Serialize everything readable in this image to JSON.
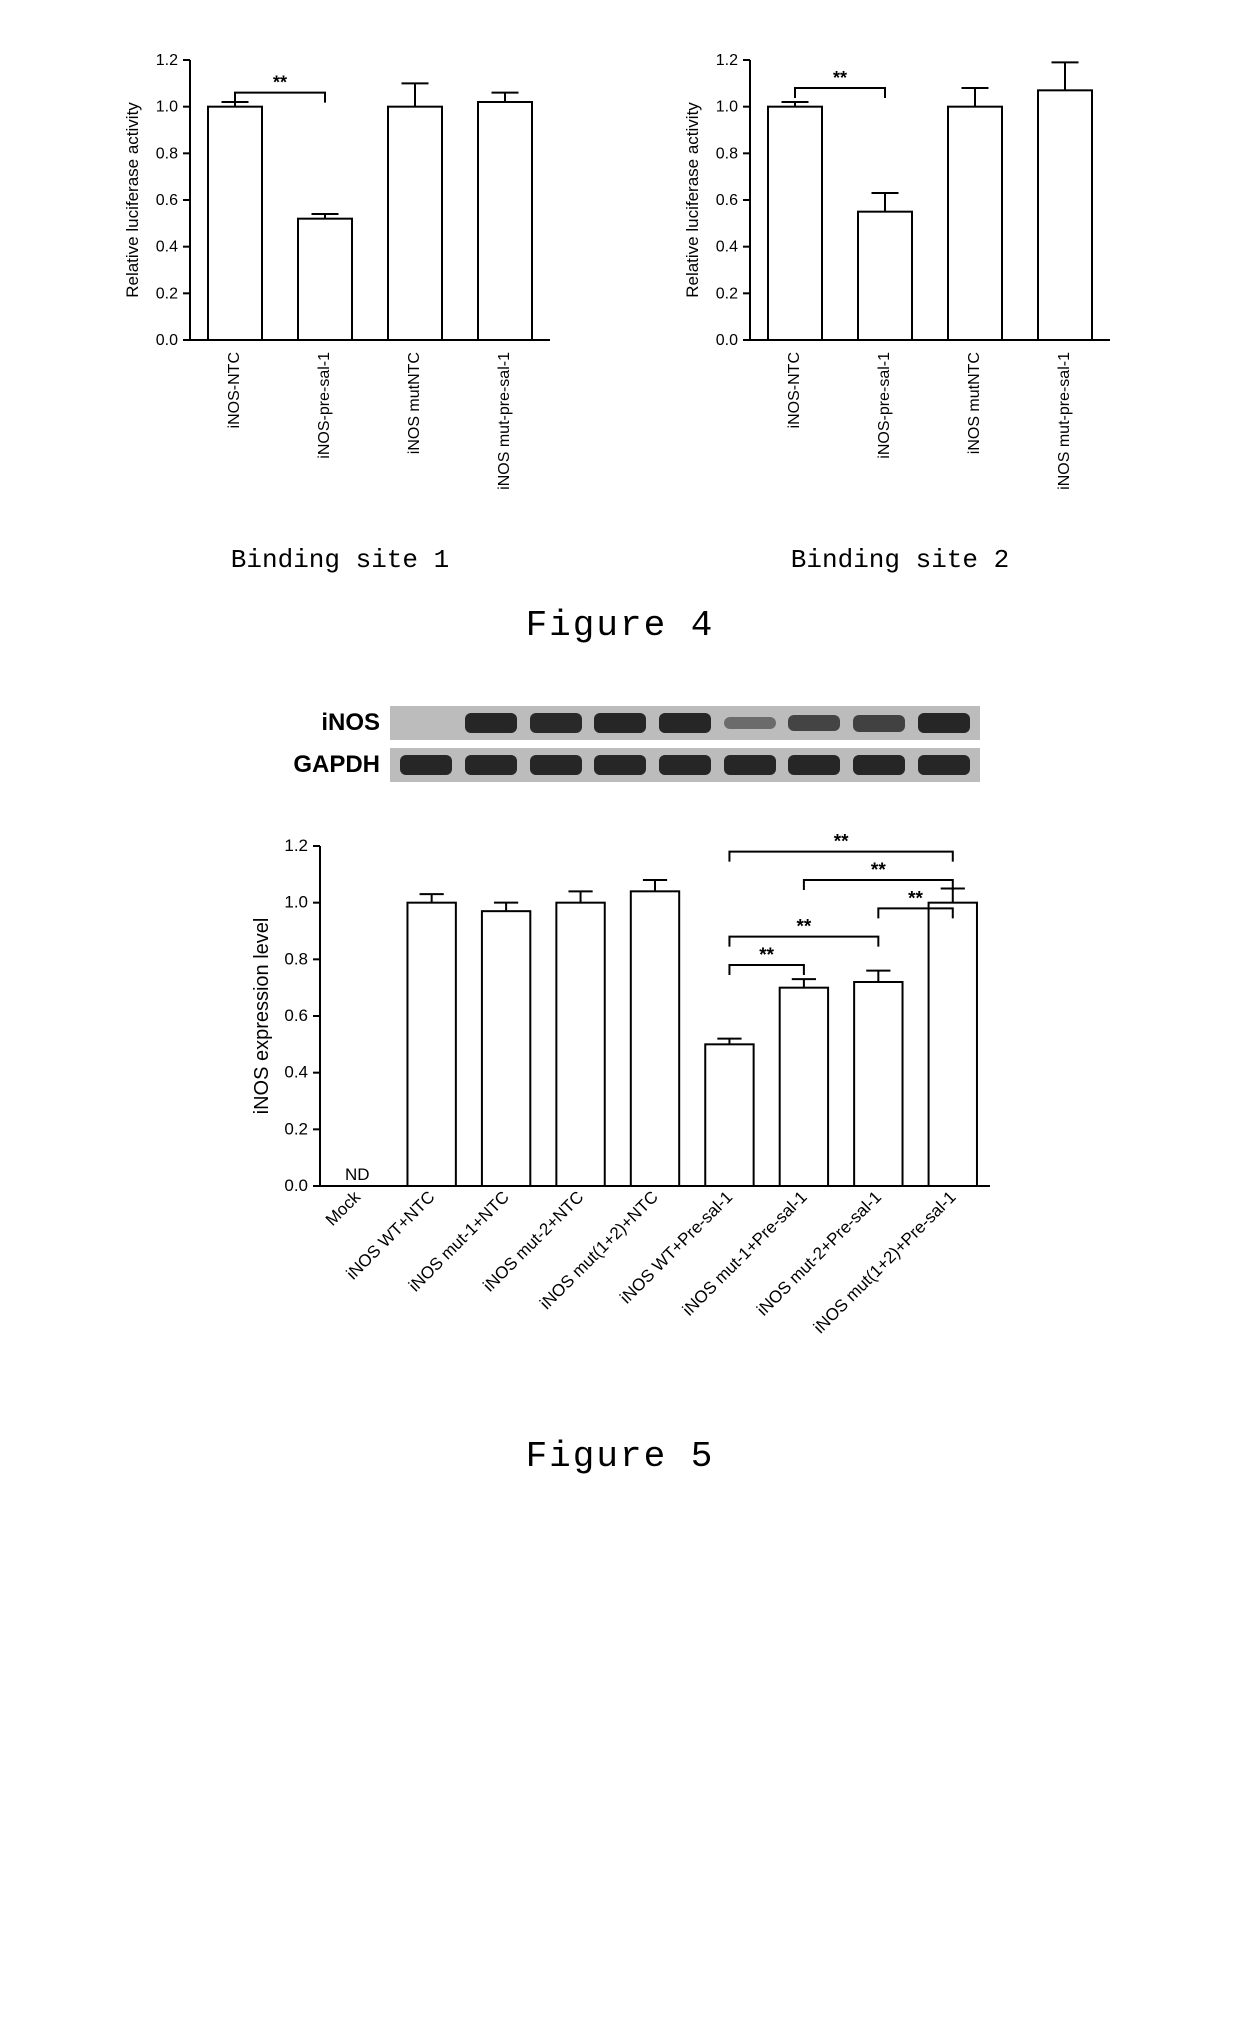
{
  "figure4": {
    "title": "Figure 4",
    "panels": [
      {
        "panel_label": "Binding site 1",
        "type": "bar",
        "ylabel": "Relative luciferase activity",
        "ylim": [
          0.0,
          1.2
        ],
        "ytick_step": 0.2,
        "categories": [
          "iNOS-NTC",
          "iNOS-pre-sal-1",
          "iNOS mutNTC",
          "iNOS mut-pre-sal-1"
        ],
        "values": [
          1.0,
          0.52,
          1.0,
          1.02
        ],
        "errors": [
          0.02,
          0.02,
          0.1,
          0.04
        ],
        "bar_fill": "#ffffff",
        "bar_stroke": "#000000",
        "bar_width": 0.6,
        "background_color": "#ffffff",
        "axis_color": "#000000",
        "label_fontsize": 17,
        "tick_fontsize": 16,
        "sig_pairs": [
          {
            "a": 0,
            "b": 1,
            "label": "**",
            "y": 1.06
          }
        ]
      },
      {
        "panel_label": "Binding site 2",
        "type": "bar",
        "ylabel": "Relative luciferase activity",
        "ylim": [
          0.0,
          1.2
        ],
        "ytick_step": 0.2,
        "categories": [
          "iNOS-NTC",
          "iNOS-pre-sal-1",
          "iNOS mutNTC",
          "iNOS mut-pre-sal-1"
        ],
        "values": [
          1.0,
          0.55,
          1.0,
          1.07
        ],
        "errors": [
          0.02,
          0.08,
          0.08,
          0.12
        ],
        "bar_fill": "#ffffff",
        "bar_stroke": "#000000",
        "bar_width": 0.6,
        "background_color": "#ffffff",
        "axis_color": "#000000",
        "label_fontsize": 17,
        "tick_fontsize": 16,
        "sig_pairs": [
          {
            "a": 0,
            "b": 1,
            "label": "**",
            "y": 1.08
          }
        ]
      }
    ]
  },
  "figure5": {
    "title": "Figure 5",
    "blots": {
      "rows": [
        {
          "label": "iNOS",
          "band_intensities": [
            0.0,
            1.0,
            0.97,
            1.0,
            1.04,
            0.3,
            0.7,
            0.72,
            1.0
          ]
        },
        {
          "label": "GAPDH",
          "band_intensities": [
            1.0,
            1.0,
            1.0,
            1.0,
            1.0,
            1.0,
            1.0,
            1.0,
            1.0
          ]
        }
      ],
      "strip_bg": "#bcbcbc",
      "band_color": "#262626",
      "band_base_width": 52
    },
    "chart": {
      "type": "bar",
      "ylabel": "iNOS expression level",
      "ylim": [
        0.0,
        1.2
      ],
      "ytick_step": 0.2,
      "categories": [
        "Mock",
        "iNOS WT+NTC",
        "iNOS mut-1+NTC",
        "iNOS mut-2+NTC",
        "iNOS mut(1+2)+NTC",
        "iNOS WT+Pre-sal-1",
        "iNOS mut-1+Pre-sal-1",
        "iNOS mut-2+Pre-sal-1",
        "iNOS mut(1+2)+Pre-sal-1"
      ],
      "values": [
        0.0,
        1.0,
        0.97,
        1.0,
        1.04,
        0.5,
        0.7,
        0.72,
        1.0
      ],
      "errors": [
        0,
        0.03,
        0.03,
        0.04,
        0.04,
        0.02,
        0.03,
        0.04,
        0.05
      ],
      "nd_index": 0,
      "nd_label": "ND",
      "bar_fill": "#ffffff",
      "bar_stroke": "#000000",
      "bar_width": 0.65,
      "background_color": "#ffffff",
      "axis_color": "#000000",
      "label_fontsize": 20,
      "tick_fontsize": 17,
      "sig_pairs": [
        {
          "a": 5,
          "b": 6,
          "label": "**",
          "y": 0.78
        },
        {
          "a": 5,
          "b": 7,
          "label": "**",
          "y": 0.88
        },
        {
          "a": 5,
          "b": 8,
          "label": "**",
          "y": 1.18
        },
        {
          "a": 6,
          "b": 8,
          "label": "**",
          "y": 1.08
        },
        {
          "a": 7,
          "b": 8,
          "label": "**",
          "y": 0.98
        }
      ]
    }
  }
}
